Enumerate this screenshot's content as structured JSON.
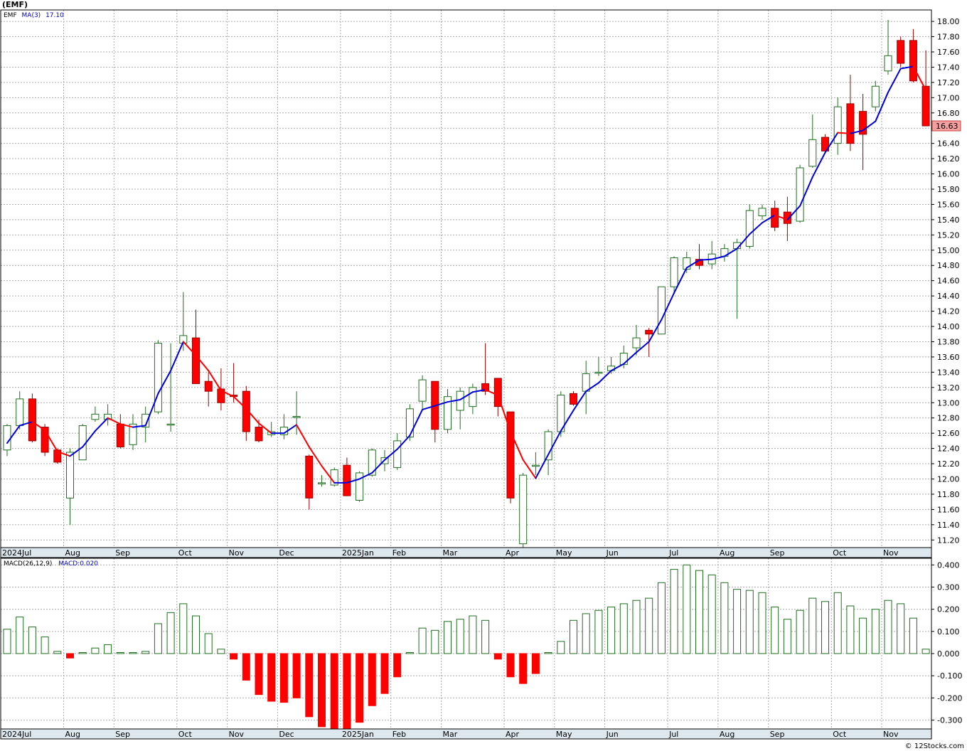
{
  "chart_data": {
    "type": "candlestick",
    "title": "(EMF)",
    "colors": {
      "up": "#1f6f1f",
      "down": "#ff0000",
      "ma_up": "#0000dd",
      "ma_down": "#ff0000",
      "grid": "#aaaaaa",
      "last_badge": "#f4a0a0"
    },
    "price_panel": {
      "legend": {
        "symbol": "EMF",
        "ma_label": "MA(3)",
        "ma_value": "17.10"
      },
      "ylim": [
        11.1,
        18.15
      ],
      "yticks": [
        "11.20",
        "11.40",
        "11.60",
        "11.80",
        "12.00",
        "12.20",
        "12.40",
        "12.60",
        "12.80",
        "13.00",
        "13.20",
        "13.40",
        "13.60",
        "13.80",
        "14.00",
        "14.20",
        "14.40",
        "14.60",
        "14.80",
        "15.00",
        "15.20",
        "15.40",
        "15.60",
        "15.80",
        "16.00",
        "16.20",
        "16.40",
        "16.60",
        "16.80",
        "17.00",
        "17.20",
        "17.40",
        "17.60",
        "17.80",
        "18.00"
      ],
      "last_price": "16.63",
      "candles": [
        [
          12.38,
          12.7,
          12.72,
          12.3
        ],
        [
          12.7,
          13.05,
          13.15,
          12.65
        ],
        [
          13.05,
          12.5,
          13.12,
          12.48
        ],
        [
          12.68,
          12.35,
          12.72,
          12.3
        ],
        [
          12.38,
          12.22,
          12.4,
          12.2
        ],
        [
          11.75,
          12.35,
          12.4,
          11.4
        ],
        [
          12.25,
          12.7,
          12.72,
          12.25
        ],
        [
          12.78,
          12.85,
          12.95,
          12.75
        ],
        [
          12.78,
          12.85,
          12.98,
          12.7
        ],
        [
          12.72,
          12.42,
          12.85,
          12.4
        ],
        [
          12.45,
          12.72,
          12.85,
          12.38
        ],
        [
          12.68,
          12.85,
          12.95,
          12.48
        ],
        [
          12.88,
          13.78,
          13.82,
          12.85
        ],
        [
          12.72,
          12.72,
          13.78,
          12.62
        ],
        [
          13.78,
          13.88,
          14.45,
          13.68
        ],
        [
          13.85,
          13.25,
          14.22,
          13.28
        ],
        [
          13.28,
          13.15,
          13.4,
          12.95
        ],
        [
          13.18,
          13.0,
          13.45,
          12.9
        ],
        [
          13.1,
          13.08,
          13.52,
          13.0
        ],
        [
          13.15,
          12.62,
          13.22,
          12.5
        ],
        [
          12.68,
          12.5,
          12.78,
          12.48
        ],
        [
          12.58,
          12.62,
          12.75,
          12.55
        ],
        [
          12.58,
          12.68,
          12.85,
          12.52
        ],
        [
          12.82,
          12.82,
          13.15,
          12.58
        ],
        [
          12.3,
          11.75,
          12.32,
          11.6
        ],
        [
          11.95,
          11.95,
          12.05,
          11.9
        ],
        [
          11.92,
          12.12,
          12.15,
          11.9
        ],
        [
          12.18,
          11.78,
          12.28,
          11.78
        ],
        [
          11.72,
          12.08,
          12.1,
          11.7
        ],
        [
          12.05,
          12.38,
          12.4,
          12.03
        ],
        [
          12.2,
          12.28,
          12.38,
          12.1
        ],
        [
          12.15,
          12.5,
          12.6,
          12.12
        ],
        [
          12.55,
          12.92,
          12.98,
          12.5
        ],
        [
          13.02,
          13.3,
          13.36,
          12.92
        ],
        [
          13.28,
          12.65,
          13.28,
          12.48
        ],
        [
          12.65,
          13.08,
          13.18,
          12.6
        ],
        [
          12.9,
          13.15,
          13.2,
          12.65
        ],
        [
          12.95,
          13.2,
          13.25,
          12.85
        ],
        [
          13.25,
          13.15,
          13.78,
          13.1
        ],
        [
          13.32,
          12.95,
          13.32,
          12.82
        ],
        [
          12.88,
          11.75,
          12.88,
          11.68
        ],
        [
          11.15,
          12.05,
          12.08,
          11.05
        ],
        [
          12.18,
          12.18,
          12.35,
          12.05
        ],
        [
          12.25,
          12.62,
          12.65,
          12.05
        ],
        [
          12.62,
          13.1,
          13.15,
          12.55
        ],
        [
          13.12,
          12.98,
          13.15,
          12.96
        ],
        [
          13.15,
          13.38,
          13.55,
          12.85
        ],
        [
          13.4,
          13.4,
          13.6,
          13.35
        ],
        [
          13.42,
          13.48,
          13.6,
          13.38
        ],
        [
          13.5,
          13.65,
          13.75,
          13.45
        ],
        [
          13.72,
          13.85,
          14.02,
          13.62
        ],
        [
          13.95,
          13.9,
          13.98,
          13.6
        ],
        [
          13.9,
          14.52,
          14.52,
          13.9
        ],
        [
          14.52,
          14.9,
          14.92,
          14.45
        ],
        [
          14.75,
          14.9,
          14.98,
          14.7
        ],
        [
          14.88,
          14.8,
          15.08,
          14.75
        ],
        [
          14.82,
          14.95,
          15.12,
          14.75
        ],
        [
          14.92,
          15.02,
          15.08,
          14.85
        ],
        [
          15.02,
          15.1,
          15.15,
          14.1
        ],
        [
          15.05,
          15.52,
          15.6,
          15.02
        ],
        [
          15.45,
          15.55,
          15.6,
          15.4
        ],
        [
          15.55,
          15.3,
          15.65,
          15.25
        ],
        [
          15.5,
          15.35,
          15.7,
          15.12
        ],
        [
          15.38,
          16.08,
          16.12,
          15.36
        ],
        [
          16.1,
          16.45,
          16.78,
          16.08
        ],
        [
          16.48,
          16.3,
          16.52,
          16.28
        ],
        [
          16.4,
          16.88,
          17.0,
          16.25
        ],
        [
          16.92,
          16.4,
          17.3,
          16.3
        ],
        [
          16.82,
          16.52,
          17.05,
          16.05
        ],
        [
          16.88,
          17.15,
          17.22,
          16.82
        ],
        [
          17.35,
          17.55,
          18.02,
          17.3
        ],
        [
          17.75,
          17.45,
          17.8,
          17.4
        ],
        [
          17.75,
          17.22,
          17.9,
          17.2
        ],
        [
          17.15,
          16.63,
          17.62,
          16.63
        ]
      ],
      "ma3": [
        12.47,
        12.7,
        12.75,
        12.64,
        12.36,
        12.3,
        12.42,
        12.63,
        12.8,
        12.72,
        12.68,
        12.7,
        13.12,
        13.42,
        13.8,
        13.62,
        13.42,
        13.16,
        13.08,
        12.92,
        12.73,
        12.6,
        12.6,
        12.71,
        12.42,
        12.17,
        11.95,
        11.95,
        12.0,
        12.08,
        12.25,
        12.39,
        12.57,
        12.91,
        12.96,
        13.01,
        13.04,
        13.14,
        13.17,
        13.1,
        12.62,
        12.25,
        12.01,
        12.32,
        12.63,
        12.9,
        13.15,
        13.26,
        13.42,
        13.51,
        13.66,
        13.8,
        14.09,
        14.44,
        14.77,
        14.87,
        14.88,
        14.92,
        15.02,
        15.21,
        15.36,
        15.46,
        15.4,
        15.58,
        15.96,
        16.28,
        16.54,
        16.53,
        16.57,
        16.69,
        17.07,
        17.38,
        17.41,
        17.1
      ],
      "x_axis": [
        "2024Jul",
        "Aug",
        "Sep",
        "Oct",
        "Nov",
        "Dec",
        "2025Jan",
        "Feb",
        "Mar",
        "Apr",
        "May",
        "Jun",
        "Jul",
        "Aug",
        "Sep",
        "Oct",
        "Nov"
      ]
    },
    "macd_panel": {
      "legend": {
        "label": "MACD(26,12,9)",
        "value": "MACD:0.020"
      },
      "ylim": [
        -0.34,
        0.43
      ],
      "yticks": [
        "0.400",
        "0.300",
        "0.200",
        "0.100",
        "0.000",
        "-0.100",
        "-0.200",
        "-0.300"
      ],
      "values": [
        0.11,
        0.165,
        0.12,
        0.075,
        0.01,
        -0.02,
        0.005,
        0.025,
        0.04,
        0.005,
        0.005,
        0.01,
        0.135,
        0.185,
        0.225,
        0.17,
        0.09,
        0.02,
        -0.025,
        -0.12,
        -0.185,
        -0.215,
        -0.22,
        -0.2,
        -0.285,
        -0.33,
        -0.345,
        -0.34,
        -0.31,
        -0.235,
        -0.18,
        -0.105,
        0.005,
        0.115,
        0.105,
        0.145,
        0.155,
        0.17,
        0.15,
        -0.025,
        -0.105,
        -0.135,
        -0.09,
        0.005,
        0.055,
        0.15,
        0.18,
        0.195,
        0.21,
        0.225,
        0.24,
        0.25,
        0.32,
        0.38,
        0.4,
        0.375,
        0.355,
        0.32,
        0.29,
        0.285,
        0.275,
        0.21,
        0.155,
        0.195,
        0.25,
        0.235,
        0.275,
        0.215,
        0.16,
        0.2,
        0.24,
        0.225,
        0.16,
        0.02
      ],
      "x_axis": [
        "2024Jul",
        "Aug",
        "Sep",
        "Oct",
        "Nov",
        "Dec",
        "2025Jan",
        "Feb",
        "Mar",
        "Apr",
        "May",
        "Jun",
        "Jul",
        "Aug",
        "Sep",
        "Oct",
        "Nov"
      ]
    },
    "watermark": "© 12Stocks.com"
  }
}
